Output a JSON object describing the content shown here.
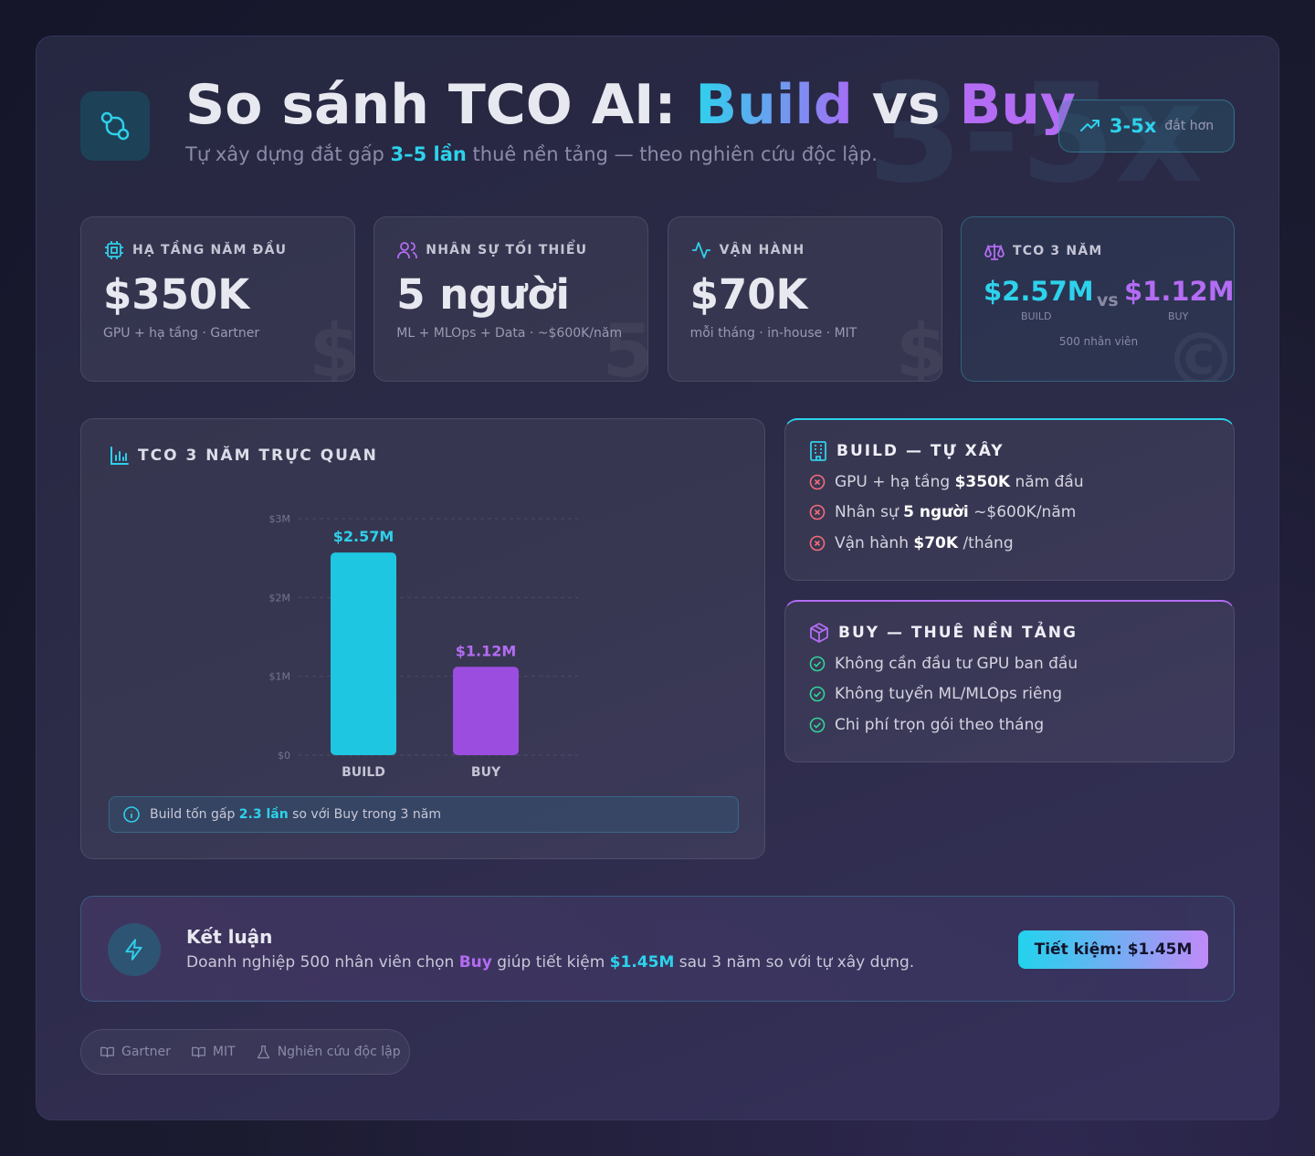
{
  "header": {
    "title_prefix": "So sánh TCO AI:",
    "title_build": "Build",
    "title_vs": "vs",
    "title_buy": "Buy",
    "subtitle_pre": "Tự xây dựng đắt gấp",
    "subtitle_em": "3–5 lần",
    "subtitle_post": "thuê nền tảng — theo nghiên cứu độc lập.",
    "badge_value": "3-5x",
    "badge_label": "đắt hơn",
    "watermark": "3-5x"
  },
  "stats": [
    {
      "label": "HẠ TẦNG NĂM ĐẦU",
      "value": "$350K",
      "note": "GPU + hạ tầng · Gartner",
      "watermark": "$"
    },
    {
      "label": "NHÂN SỰ TỐI THIỂU",
      "value": "5 người",
      "note": "ML + MLOps + Data · ~$600K/năm",
      "watermark": "5"
    },
    {
      "label": "VẬN HÀNH",
      "value": "$70K",
      "note": "mỗi tháng · in-house · MIT",
      "watermark": "$"
    }
  ],
  "tco_card": {
    "label": "TCO 3 NĂM",
    "build_value": "$2.57M",
    "vs": "vs",
    "buy_value": "$1.12M",
    "build_label": "BUILD",
    "buy_label": "BUY",
    "note": "500 nhân viên",
    "watermark": "©"
  },
  "chart_data": {
    "type": "bar",
    "title": "TCO 3 NĂM TRỰC QUAN",
    "categories": [
      "BUILD",
      "BUY"
    ],
    "values": [
      2.57,
      1.12
    ],
    "value_labels": [
      "$2.57M",
      "$1.12M"
    ],
    "colors": [
      "#1fc6e2",
      "#9b4de0"
    ],
    "label_colors": [
      "#2fd0ea",
      "#b46cf2"
    ],
    "ylim": [
      0,
      3
    ],
    "yticks": [
      {
        "value": 0,
        "label": "$0"
      },
      {
        "value": 1,
        "label": "$1M"
      },
      {
        "value": 2,
        "label": "$2M"
      },
      {
        "value": 3,
        "label": "$3M"
      }
    ],
    "grid": true
  },
  "chart_note": {
    "pre": "Build tốn gấp",
    "em": "2.3 lần",
    "post": "so với Buy trong 3 năm"
  },
  "build_panel": {
    "title": "BUILD — TỰ XÂY",
    "items": [
      {
        "pre": "GPU + hạ tầng",
        "em": "$350K",
        "post": "năm đầu"
      },
      {
        "pre": "Nhân sự",
        "em": "5 người",
        "post": "~$600K/năm"
      },
      {
        "pre": "Vận hành",
        "em": "$70K",
        "post": "/tháng"
      }
    ]
  },
  "buy_panel": {
    "title": "BUY — THUÊ NỀN TẢNG",
    "items": [
      "Không cần đầu tư GPU ban đầu",
      "Không tuyển ML/MLOps riêng",
      "Chi phí trọn gói theo tháng"
    ]
  },
  "conclusion": {
    "title": "Kết luận",
    "pre": "Doanh nghiệp 500 nhân viên chọn",
    "em1": "Buy",
    "mid": "giúp tiết kiệm",
    "em2": "$1.45M",
    "post": "sau 3 năm so với tự xây dựng.",
    "badge": "Tiết kiệm: $1.45M"
  },
  "sources": [
    "Gartner",
    "MIT",
    "Nghiên cứu độc lập"
  ]
}
